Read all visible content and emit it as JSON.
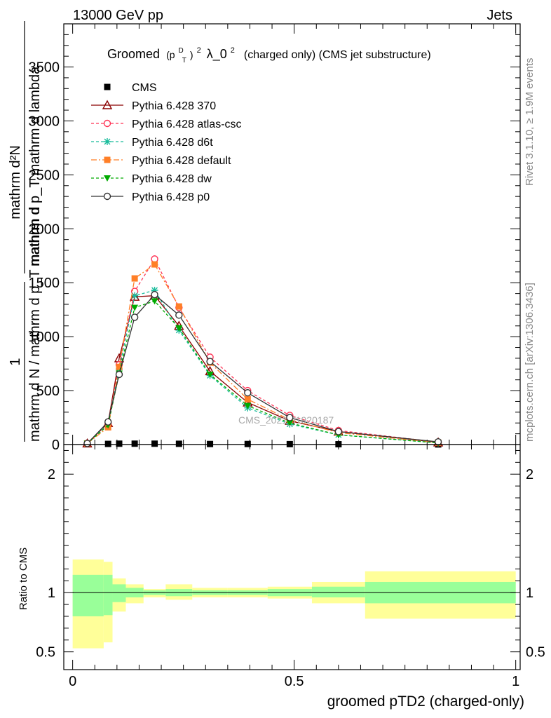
{
  "header": {
    "energy_label": "13000 GeV pp",
    "category_label": "Jets"
  },
  "side_labels": {
    "rivet": "Rivet 3.1.10, ≥ 1.9M events",
    "mcplots": "mcplots.cern.ch [arXiv:1306.3436]"
  },
  "watermark": "CMS_2021_I1920187",
  "title": {
    "prefix": "Groomed",
    "pt": "(p",
    "pt_sup": "D",
    "pt_sub": "T",
    "pt_close": ")",
    "sq": "2",
    "lambda": "λ_0",
    "lambda_sup": "2",
    "suffix": "(charged only) (CMS jet substructure)"
  },
  "ylabel_main": {
    "frac_num": "1",
    "frac_den": "mathrm d N / mathrm d p_T mathrm d",
    "expr_num": "mathrm d²N",
    "expr_den": "mathrm d p_T mathrm d lambda"
  },
  "ylabel_ratio": "Ratio to CMS",
  "xlabel": "groomed pTD2 (charged-only)",
  "chart_data": [
    {
      "type": "line",
      "panel": "main",
      "xlim": [
        -0.02,
        1.01
      ],
      "ylim": [
        0,
        3900
      ],
      "x_ticks": [],
      "y_ticks": [
        0,
        500,
        1000,
        1500,
        2000,
        2500,
        3000,
        3500
      ],
      "y_tick_labels": [
        "0",
        "500",
        "1000",
        "1500",
        "2000",
        "2500",
        "3000",
        "3500"
      ],
      "x": [
        0.033,
        0.08,
        0.105,
        0.14,
        0.185,
        0.24,
        0.31,
        0.395,
        0.49,
        0.6,
        0.825
      ],
      "series": [
        {
          "name": "CMS",
          "color": "#000000",
          "marker": "square",
          "dash": "none",
          "values": [
            3,
            6,
            8,
            8,
            8,
            7,
            5,
            5,
            4,
            3,
            1
          ]
        },
        {
          "name": "Pythia 6.428 370",
          "color": "#8b0000",
          "marker": "triangle-open",
          "dash": "none",
          "values": [
            10,
            200,
            800,
            1370,
            1380,
            1100,
            680,
            390,
            220,
            120,
            20
          ]
        },
        {
          "name": "Pythia 6.428 atlas-csc",
          "color": "#ff3355",
          "marker": "circle-open",
          "dash": "4,3",
          "values": [
            10,
            190,
            740,
            1420,
            1720,
            1270,
            810,
            500,
            270,
            130,
            22
          ]
        },
        {
          "name": "Pythia 6.428 d6t",
          "color": "#1abc9c",
          "marker": "star",
          "dash": "4,3",
          "values": [
            10,
            200,
            700,
            1380,
            1430,
            1060,
            640,
            340,
            190,
            90,
            15
          ]
        },
        {
          "name": "Pythia 6.428 default",
          "color": "#ff7f27",
          "marker": "square",
          "dash": "8,3,2,3",
          "values": [
            10,
            160,
            720,
            1540,
            1670,
            1280,
            760,
            420,
            230,
            110,
            18
          ]
        },
        {
          "name": "Pythia 6.428 dw",
          "color": "#00aa00",
          "marker": "triangle-down",
          "dash": "4,3",
          "values": [
            10,
            180,
            660,
            1270,
            1330,
            1080,
            650,
            360,
            200,
            90,
            15
          ]
        },
        {
          "name": "Pythia 6.428 p0",
          "color": "#333333",
          "marker": "circle-open",
          "dash": "none",
          "values": [
            10,
            210,
            650,
            1180,
            1390,
            1200,
            770,
            480,
            250,
            120,
            25
          ]
        }
      ]
    },
    {
      "type": "area",
      "panel": "ratio",
      "xlim": [
        -0.02,
        1.01
      ],
      "ylim": [
        0.35,
        2.25
      ],
      "x_ticks": [
        0,
        0.5,
        1
      ],
      "x_tick_labels": [
        "0",
        "0.5",
        "1"
      ],
      "y_ticks": [
        0.5,
        1,
        2
      ],
      "y_tick_labels": [
        "0.5",
        "1",
        "2"
      ],
      "reference_line": 1,
      "bins": [
        {
          "x0": 0.0,
          "x1": 0.07,
          "stat_lo": 0.8,
          "stat_hi": 1.15,
          "syst_lo": 0.53,
          "syst_hi": 1.28
        },
        {
          "x0": 0.07,
          "x1": 0.09,
          "stat_lo": 0.81,
          "stat_hi": 1.15,
          "syst_lo": 0.58,
          "syst_hi": 1.26
        },
        {
          "x0": 0.09,
          "x1": 0.12,
          "stat_lo": 0.92,
          "stat_hi": 1.07,
          "syst_lo": 0.84,
          "syst_hi": 1.12
        },
        {
          "x0": 0.12,
          "x1": 0.16,
          "stat_lo": 0.96,
          "stat_hi": 1.04,
          "syst_lo": 0.91,
          "syst_hi": 1.07
        },
        {
          "x0": 0.16,
          "x1": 0.21,
          "stat_lo": 0.98,
          "stat_hi": 1.02,
          "syst_lo": 0.96,
          "syst_hi": 1.03
        },
        {
          "x0": 0.21,
          "x1": 0.27,
          "stat_lo": 0.97,
          "stat_hi": 1.03,
          "syst_lo": 0.94,
          "syst_hi": 1.07
        },
        {
          "x0": 0.27,
          "x1": 0.35,
          "stat_lo": 0.98,
          "stat_hi": 1.02,
          "syst_lo": 0.96,
          "syst_hi": 1.04
        },
        {
          "x0": 0.35,
          "x1": 0.44,
          "stat_lo": 0.98,
          "stat_hi": 1.02,
          "syst_lo": 0.96,
          "syst_hi": 1.04
        },
        {
          "x0": 0.44,
          "x1": 0.54,
          "stat_lo": 0.97,
          "stat_hi": 1.03,
          "syst_lo": 0.95,
          "syst_hi": 1.05
        },
        {
          "x0": 0.54,
          "x1": 0.66,
          "stat_lo": 0.96,
          "stat_hi": 1.05,
          "syst_lo": 0.91,
          "syst_hi": 1.09
        },
        {
          "x0": 0.66,
          "x1": 1.0,
          "stat_lo": 0.91,
          "stat_hi": 1.09,
          "syst_lo": 0.78,
          "syst_hi": 1.18
        }
      ],
      "stat_color": "#99ff99",
      "syst_color": "#ffff99"
    }
  ]
}
